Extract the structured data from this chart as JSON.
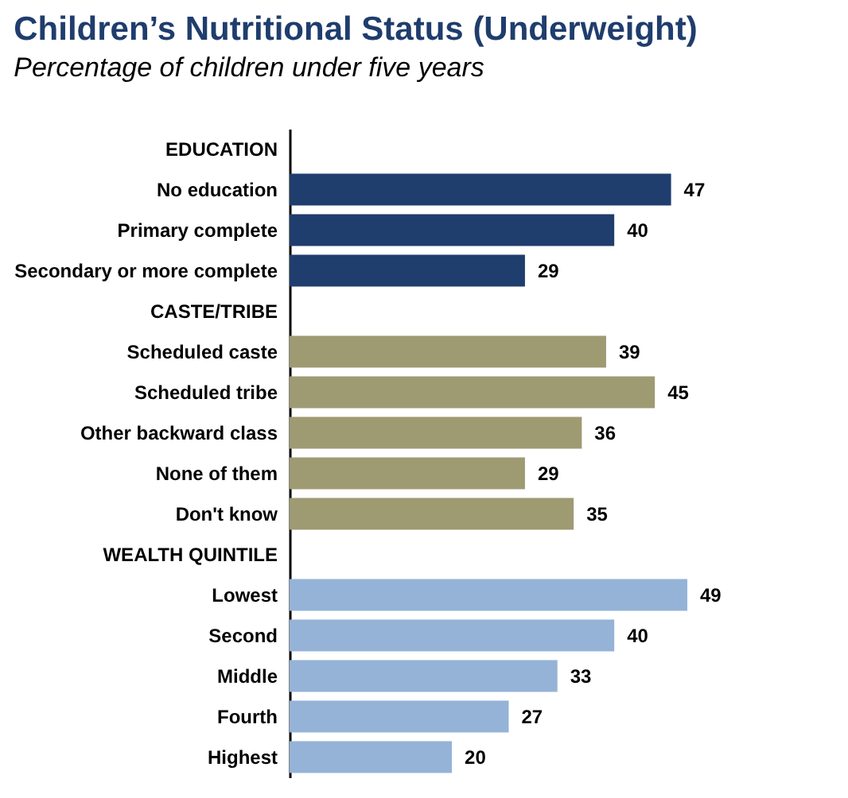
{
  "chart_data": {
    "type": "bar",
    "orientation": "horizontal",
    "title": "Children’s Nutritional Status (Underweight)",
    "subtitle": "Percentage of children under five years",
    "categories": [
      "EDUCATION",
      "No education",
      "Primary complete",
      "Secondary or more complete",
      "CASTE/TRIBE",
      "Scheduled caste",
      "Scheduled tribe",
      "Other backward class",
      "None of them",
      "Don't know",
      "WEALTH QUINTILE",
      "Lowest",
      "Second",
      "Middle",
      "Fourth",
      "Highest"
    ],
    "values": [
      null,
      47,
      40,
      29,
      null,
      39,
      45,
      36,
      29,
      35,
      null,
      49,
      40,
      33,
      27,
      20
    ],
    "colors": [
      null,
      "#1f3d6d",
      "#1f3d6d",
      "#1f3d6d",
      null,
      "#9e9a72",
      "#9e9a72",
      "#9e9a72",
      "#9e9a72",
      "#9e9a72",
      null,
      "#95b3d7",
      "#95b3d7",
      "#95b3d7",
      "#95b3d7",
      "#95b3d7"
    ],
    "data_labels": true
  }
}
